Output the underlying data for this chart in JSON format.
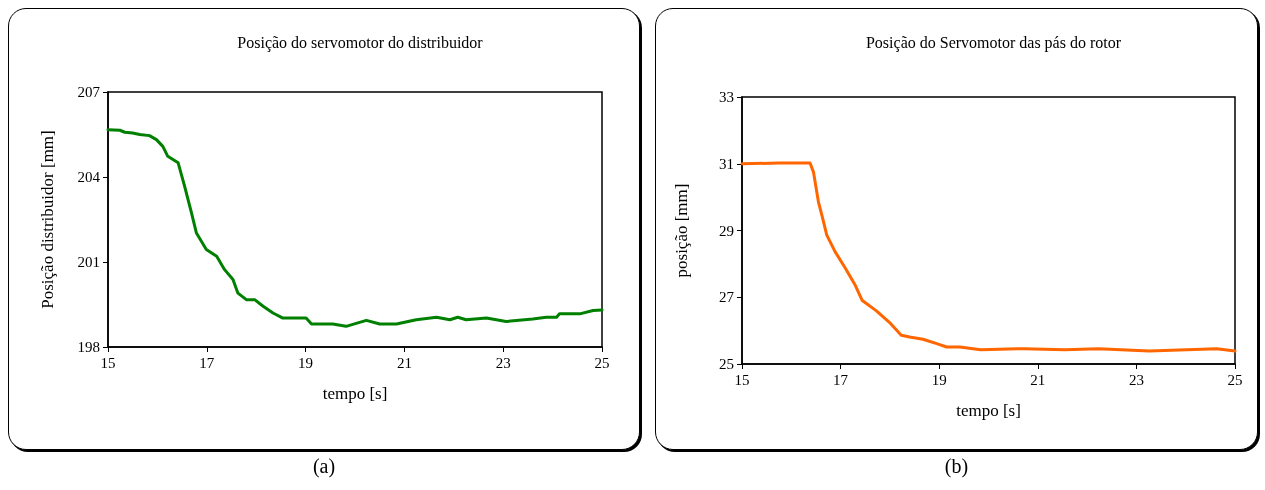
{
  "chart_data": [
    {
      "type": "line",
      "title": "Posição do servomotor do distribuidor",
      "xlabel": "tempo [s]",
      "ylabel": "Posição distribuidor [mm]",
      "annotations": [
        "(a)"
      ],
      "xlim": [
        15,
        25
      ],
      "xticks": [
        15,
        17,
        19,
        21,
        23,
        25
      ],
      "ylim": [
        198,
        207
      ],
      "yticks": [
        198,
        201,
        204,
        207
      ],
      "grid": false,
      "marker": "none",
      "line_style": "solid",
      "series": [
        {
          "color": "#008000",
          "x": [
            15.0,
            15.24,
            15.34,
            15.5,
            15.64,
            15.84,
            15.98,
            16.11,
            16.21,
            16.42,
            16.55,
            16.69,
            16.79,
            16.99,
            17.2,
            17.36,
            17.53,
            17.63,
            17.8,
            17.97,
            18.14,
            18.34,
            18.54,
            19.01,
            19.12,
            19.55,
            19.82,
            20.23,
            20.5,
            20.84,
            21.24,
            21.65,
            21.92,
            22.08,
            22.25,
            22.66,
            23.06,
            23.6,
            23.87,
            24.08,
            24.14,
            24.55,
            24.82,
            25.0
          ],
          "values": [
            205.67,
            205.65,
            205.58,
            205.55,
            205.5,
            205.46,
            205.32,
            205.08,
            204.73,
            204.5,
            203.68,
            202.73,
            202.02,
            201.44,
            201.2,
            200.73,
            200.38,
            199.9,
            199.67,
            199.67,
            199.44,
            199.2,
            199.02,
            199.02,
            198.81,
            198.81,
            198.73,
            198.94,
            198.81,
            198.81,
            198.96,
            199.05,
            198.96,
            199.05,
            198.96,
            199.02,
            198.9,
            198.99,
            199.05,
            199.05,
            199.17,
            199.17,
            199.29,
            199.31
          ]
        }
      ]
    },
    {
      "type": "line",
      "title": "Posição do Servomotor das pás do rotor",
      "xlabel": "tempo [s]",
      "ylabel": "posição [mm]",
      "annotations": [
        "(b)"
      ],
      "xlim": [
        15,
        25
      ],
      "xticks": [
        15,
        17,
        19,
        21,
        23,
        25
      ],
      "ylim": [
        25,
        33
      ],
      "yticks": [
        25,
        27,
        29,
        31,
        33
      ],
      "grid": false,
      "marker": "none",
      "line_style": "solid",
      "series": [
        {
          "color": "#ff6600",
          "x": [
            15.0,
            15.73,
            16.38,
            16.45,
            16.55,
            16.62,
            16.72,
            16.89,
            17.1,
            17.3,
            17.44,
            17.72,
            17.99,
            18.23,
            18.4,
            18.67,
            18.95,
            19.15,
            19.42,
            19.84,
            20.72,
            21.55,
            22.23,
            23.26,
            24.63,
            25.0
          ],
          "values": [
            31.0,
            31.02,
            31.02,
            30.75,
            29.86,
            29.46,
            28.86,
            28.36,
            27.86,
            27.35,
            26.9,
            26.6,
            26.25,
            25.86,
            25.81,
            25.74,
            25.61,
            25.51,
            25.51,
            25.43,
            25.46,
            25.43,
            25.46,
            25.39,
            25.46,
            25.39
          ]
        }
      ]
    }
  ]
}
